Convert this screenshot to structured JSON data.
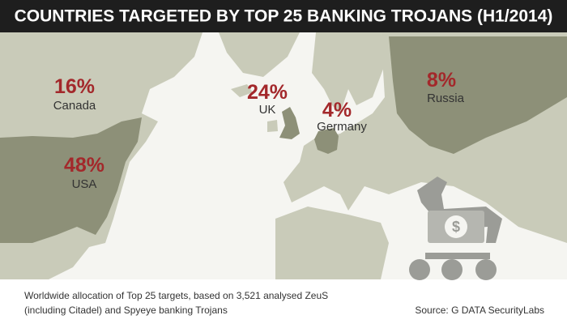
{
  "title": "COUNTRIES TARGETED BY TOP 25 BANKING TROJANS (H1/2014)",
  "countries": [
    {
      "value": "16%",
      "name": "Canada"
    },
    {
      "value": "48%",
      "name": "USA"
    },
    {
      "value": "24%",
      "name": "UK"
    },
    {
      "value": "4%",
      "name": "Germany"
    },
    {
      "value": "8%",
      "name": "Russia"
    }
  ],
  "caption": [
    "Worldwide allocation of Top 25 targets, based on 3,521 analysed ZeuS",
    "(including Citadel) and Spyeye banking Trojans"
  ],
  "source": "Source: G DATA SecurityLabs"
}
